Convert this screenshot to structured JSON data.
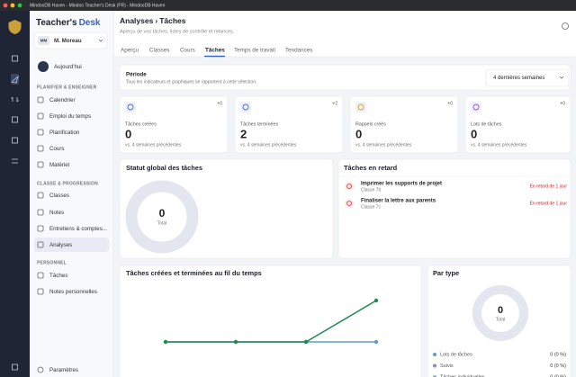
{
  "window": {
    "title": "MindooDB Haven - Mindoo Teacher's Desk (FR) - MindooDB Haven"
  },
  "sidebar": {
    "brand_main": "Teacher's",
    "brand_accent": "Desk",
    "user": {
      "initials": "MM",
      "name": "M. Moreau"
    },
    "today": "Aujourd'hui",
    "sections": [
      {
        "title": "PLANIFIER & ENSEIGNER",
        "items": [
          "Calendrier",
          "Emploi du temps",
          "Planification",
          "Cours",
          "Matériel"
        ]
      },
      {
        "title": "CLASSE & PROGRESSION",
        "items": [
          "Classes",
          "Notes",
          "Entretiens & comptes...",
          "Analyses"
        ]
      },
      {
        "title": "PERSONNEL",
        "items": [
          "Tâches",
          "Notes personnelles"
        ]
      }
    ],
    "settings": "Paramètres"
  },
  "header": {
    "crumb": "Analyses",
    "sep": "›",
    "page": "Tâches",
    "subtitle": "Aperçu de vos tâches, listes de contrôle et relances.",
    "tabs": [
      "Aperçu",
      "Classes",
      "Cours",
      "Tâches",
      "Temps de travail",
      "Tendances"
    ],
    "active_tab": 3
  },
  "period": {
    "title": "Période",
    "description": "Tous les indicateurs et graphiques se rapportent à cette sélection.",
    "selected": "4 dernières semaines"
  },
  "kpis": [
    {
      "label": "Tâches créées",
      "value": "0",
      "delta": "+0",
      "note": "vs. 4 semaines précédentes"
    },
    {
      "label": "Tâches terminées",
      "value": "2",
      "delta": "+2",
      "note": "vs. 4 semaines précédentes"
    },
    {
      "label": "Rappels créés",
      "value": "0",
      "delta": "+0",
      "note": "vs. 4 semaines précédentes"
    },
    {
      "label": "Lots de tâches",
      "value": "0",
      "delta": "+0",
      "note": "vs. 4 semaines précédentes"
    }
  ],
  "status_card": {
    "title": "Statut global des tâches",
    "total": "0",
    "total_label": "Total"
  },
  "overdue": {
    "title": "Tâches en retard",
    "items": [
      {
        "title": "Imprimer les supports de projet",
        "class": "Classe 7b",
        "delay": "En retard de 1 jour"
      },
      {
        "title": "Finaliser la lettre aux parents",
        "class": "Classe 7c",
        "delay": "En retard de 1 jour"
      }
    ]
  },
  "trend_chart": {
    "type": "line",
    "title": "Tâches créées et terminées au fil du temps",
    "categories": [
      null,
      null,
      null,
      null
    ],
    "ylim": [
      0,
      2
    ],
    "series": [
      {
        "color": "#5b9bd5",
        "values": [
          0,
          0,
          0,
          0
        ]
      },
      {
        "color": "#1f8a4c",
        "values": [
          0,
          0,
          0,
          2
        ]
      }
    ]
  },
  "type_card": {
    "title": "Par type",
    "total": "0",
    "total_label": "Total",
    "legend": [
      {
        "name": "Lots de tâches",
        "value": "0 (0 %)",
        "color": "#5b9bd5"
      },
      {
        "name": "Suivis",
        "value": "0 (0 %)",
        "color": "#9b7fd4"
      },
      {
        "name": "Tâches individuelles",
        "value": "0 (0 %)",
        "color": "#7fb3e0"
      }
    ]
  }
}
